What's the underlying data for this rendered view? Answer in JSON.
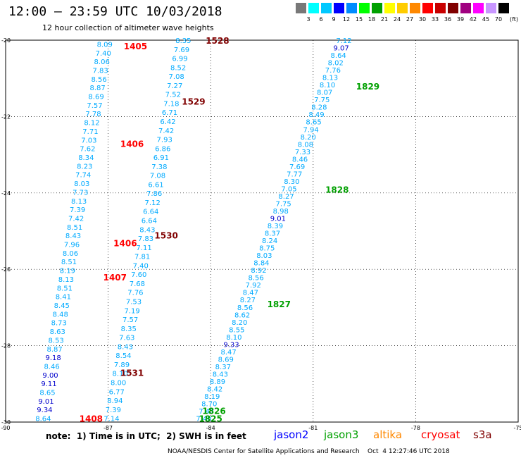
{
  "header": {
    "title": "12:00 – 23:59 UTC 10/03/2018",
    "subtitle": "12 hour collection of altimeter wave heights"
  },
  "scale": {
    "unit": "(ft)",
    "colors": [
      "#787878",
      "#00ffff",
      "#00c8ff",
      "#0000ff",
      "#008cff",
      "#00ff00",
      "#00a000",
      "#ffff00",
      "#ffcc00",
      "#ff8800",
      "#ff0000",
      "#c80000",
      "#800000",
      "#a00080",
      "#ff00ff",
      "#c896ff",
      "#000000"
    ],
    "labels": [
      "3",
      "6",
      "9",
      "12",
      "15",
      "18",
      "21",
      "24",
      "27",
      "30",
      "33",
      "36",
      "39",
      "42",
      "45",
      "70"
    ]
  },
  "note": "note:  1) Time is in UTC;  2) SWH is in feet",
  "legend": [
    {
      "name": "jason2",
      "color": "#0000ff"
    },
    {
      "name": "jason3",
      "color": "#00a000"
    },
    {
      "name": "altika",
      "color": "#ff8800"
    },
    {
      "name": "cryosat",
      "color": "#ff0000"
    },
    {
      "name": "s3a",
      "color": "#800000"
    }
  ],
  "footer": "NOAA/NESDIS Center for Satellite Applications and Research    Oct  4 12:27:46 UTC 2018",
  "chart_data": {
    "type": "scatter",
    "xlim": [
      -90,
      -75
    ],
    "ylim": [
      -30,
      -20
    ],
    "x_ticks": [
      -90,
      -87,
      -84,
      -81,
      -78,
      -75
    ],
    "y_ticks": [
      -20,
      -22,
      -24,
      -26,
      -28,
      -30
    ],
    "grid": true,
    "value_color": "#00aaff",
    "dark_value_color": "#0000cc",
    "tracks": [
      {
        "name": "track-a",
        "lon_top": -87.1,
        "lon_bottom": -88.9,
        "lat_top": -20.1,
        "lat_bottom": -29.9,
        "values": [
          "8.09",
          "7.40",
          "8.06",
          "7.83",
          "8.56",
          "8.87",
          "8.69",
          "7.57",
          "7.78",
          "8.12",
          "7.71",
          "7.03",
          "7.62",
          "8.34",
          "8.23",
          "7.74",
          "8.03",
          "7.73",
          "8.13",
          "7.39",
          "7.42",
          "8.51",
          "8.43",
          "7.96",
          "8.06",
          "8.51",
          "8.19",
          "8.13",
          "8.51",
          "8.41",
          "8.45",
          "8.48",
          "8.73",
          "8.63",
          "8.53",
          "8.87",
          "9.18",
          "8.46",
          "9.00",
          "9.11",
          "8.65",
          "9.01",
          "9.34",
          "8.64"
        ]
      },
      {
        "name": "track-b",
        "lon_top": -84.8,
        "lon_bottom": -86.9,
        "lat_top": -20.0,
        "lat_bottom": -29.9,
        "values": [
          "8.35",
          "7.69",
          "6.99",
          "8.52",
          "7.08",
          "7.27",
          "7.52",
          "7.18",
          "6.71",
          "6.42",
          "7.42",
          "7.93",
          "6.86",
          "6.91",
          "7.38",
          "7.08",
          "6.61",
          "7.86",
          "7.12",
          "6.64",
          "6.64",
          "8.43",
          "7.83",
          "7.11",
          "7.81",
          "7.40",
          "7.60",
          "7.68",
          "7.76",
          "7.53",
          "7.19",
          "7.57",
          "8.35",
          "7.63",
          "8.43",
          "8.54",
          "7.89",
          "8.10",
          "8.00",
          "6.77",
          "8.94",
          "7.39",
          "7.14"
        ]
      },
      {
        "name": "track-c",
        "lon_top": -80.1,
        "lon_bottom": -84.2,
        "lat_top": -20.0,
        "lat_bottom": -29.9,
        "values": [
          "7.12",
          "9.07",
          "8.64",
          "8.02",
          "7.76",
          "8.13",
          "8.10",
          "8.07",
          "7.75",
          "8.28",
          "8.49",
          "8.65",
          "7.94",
          "8.20",
          "8.08",
          "7.33",
          "8.46",
          "7.69",
          "7.77",
          "8.30",
          "7.05",
          "8.27",
          "7.75",
          "8.98",
          "9.01",
          "8.39",
          "8.37",
          "8.24",
          "8.75",
          "8.03",
          "8.84",
          "8.92",
          "8.56",
          "7.92",
          "8.47",
          "8.27",
          "8.56",
          "8.62",
          "8.20",
          "8.55",
          "8.10",
          "9.33",
          "8.47",
          "8.69",
          "8.37",
          "8.43",
          "8.89",
          "8.42",
          "8.19",
          "8.70",
          "7.47",
          "7.40"
        ]
      }
    ],
    "pass_labels": [
      {
        "text": "1405",
        "lon": -86.2,
        "lat": -20.15,
        "color": "#ff0000"
      },
      {
        "text": "1528",
        "lon": -83.8,
        "lat": -20.0,
        "color": "#800000"
      },
      {
        "text": "1529",
        "lon": -84.5,
        "lat": -21.6,
        "color": "#800000"
      },
      {
        "text": "1829",
        "lon": -79.4,
        "lat": -21.2,
        "color": "#00a000"
      },
      {
        "text": "1406",
        "lon": -86.3,
        "lat": -22.7,
        "color": "#ff0000"
      },
      {
        "text": "1828",
        "lon": -80.3,
        "lat": -23.9,
        "color": "#00a000"
      },
      {
        "text": "1530",
        "lon": -85.3,
        "lat": -25.1,
        "color": "#800000"
      },
      {
        "text": "1406",
        "lon": -86.5,
        "lat": -25.3,
        "color": "#ff0000"
      },
      {
        "text": "1407",
        "lon": -86.8,
        "lat": -26.2,
        "color": "#ff0000"
      },
      {
        "text": "1827",
        "lon": -82.0,
        "lat": -26.9,
        "color": "#00a000"
      },
      {
        "text": "1531",
        "lon": -86.3,
        "lat": -28.7,
        "color": "#800000"
      },
      {
        "text": "1826",
        "lon": -83.9,
        "lat": -29.7,
        "color": "#00a000"
      },
      {
        "text": "1825",
        "lon": -84.0,
        "lat": -29.9,
        "color": "#00a000"
      },
      {
        "text": "1408",
        "lon": -87.5,
        "lat": -29.9,
        "color": "#ff0000"
      }
    ]
  }
}
